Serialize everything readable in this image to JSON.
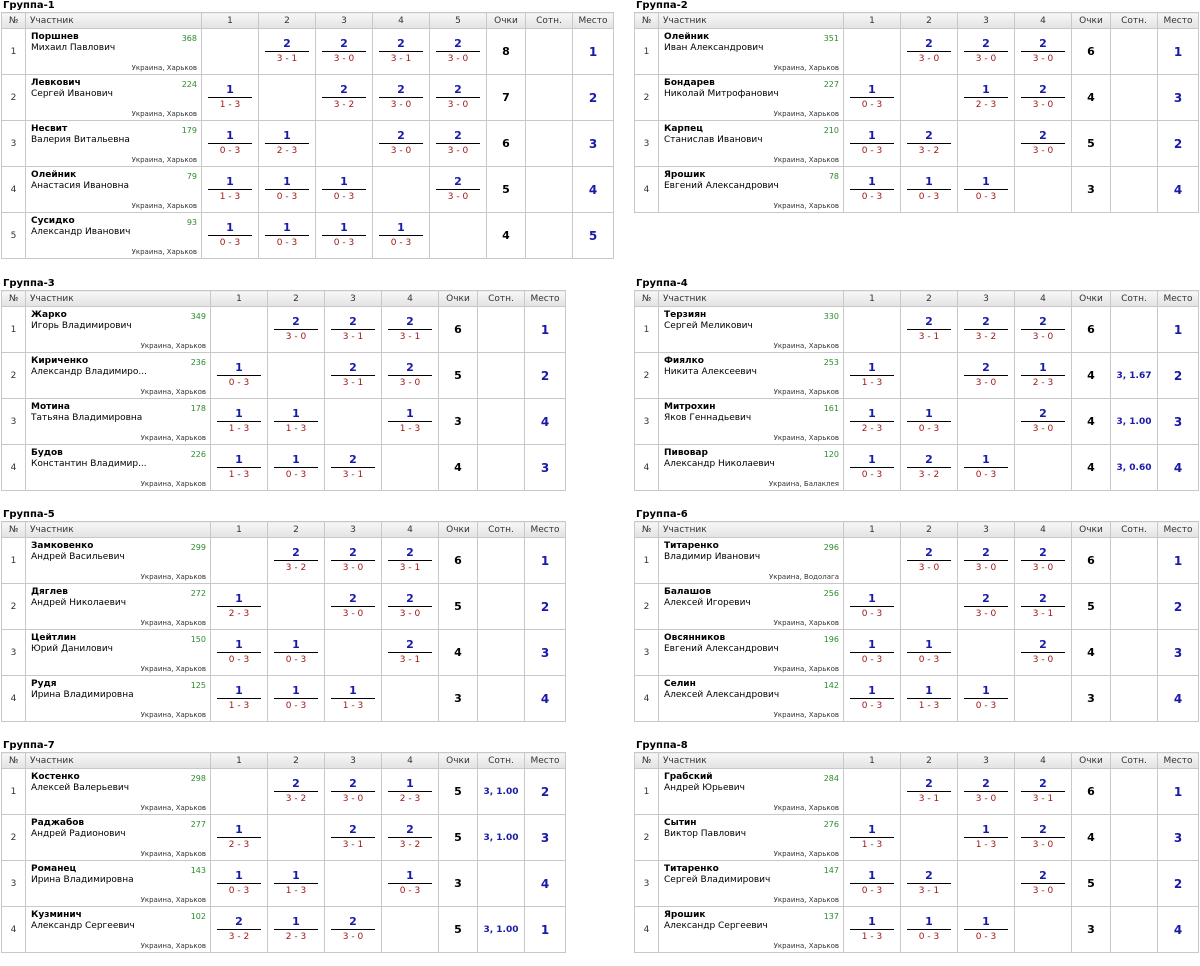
{
  "headers": {
    "num": "№",
    "participant": "Участник",
    "points": "Очки",
    "ratio": "Сотн.",
    "place": "Место"
  },
  "groups": [
    {
      "title": "Группа-1",
      "cols": [
        "1",
        "2",
        "3",
        "4",
        "5"
      ],
      "players": [
        {
          "n": "1",
          "last": "Поршнев",
          "first": "Михаил Павлович",
          "rating": "368",
          "city": "Украина, Харьков",
          "results": [
            null,
            [
              "2",
              "3 - 1"
            ],
            [
              "2",
              "3 - 0"
            ],
            [
              "2",
              "3 - 1"
            ],
            [
              "2",
              "3 - 0"
            ]
          ],
          "points": "8",
          "ratio": "",
          "place": "1"
        },
        {
          "n": "2",
          "last": "Левкович",
          "first": "Сергей Иванович",
          "rating": "224",
          "city": "Украина, Харьков",
          "results": [
            [
              "1",
              "1 - 3"
            ],
            null,
            [
              "2",
              "3 - 2"
            ],
            [
              "2",
              "3 - 0"
            ],
            [
              "2",
              "3 - 0"
            ]
          ],
          "points": "7",
          "ratio": "",
          "place": "2"
        },
        {
          "n": "3",
          "last": "Несвит",
          "first": "Валерия Витальевна",
          "rating": "179",
          "city": "Украина, Харьков",
          "results": [
            [
              "1",
              "0 - 3"
            ],
            [
              "1",
              "2 - 3"
            ],
            null,
            [
              "2",
              "3 - 0"
            ],
            [
              "2",
              "3 - 0"
            ]
          ],
          "points": "6",
          "ratio": "",
          "place": "3"
        },
        {
          "n": "4",
          "last": "Олейник",
          "first": "Анастасия Ивановна",
          "rating": "79",
          "city": "Украина, Харьков",
          "results": [
            [
              "1",
              "1 - 3"
            ],
            [
              "1",
              "0 - 3"
            ],
            [
              "1",
              "0 - 3"
            ],
            null,
            [
              "2",
              "3 - 0"
            ]
          ],
          "points": "5",
          "ratio": "",
          "place": "4"
        },
        {
          "n": "5",
          "last": "Сусидко",
          "first": "Александр Иванович",
          "rating": "93",
          "city": "Украина, Харьков",
          "results": [
            [
              "1",
              "0 - 3"
            ],
            [
              "1",
              "0 - 3"
            ],
            [
              "1",
              "0 - 3"
            ],
            [
              "1",
              "0 - 3"
            ],
            null
          ],
          "points": "4",
          "ratio": "",
          "place": "5"
        }
      ]
    },
    {
      "title": "Группа-2",
      "cols": [
        "1",
        "2",
        "3",
        "4"
      ],
      "players": [
        {
          "n": "1",
          "last": "Олейник",
          "first": "Иван Александрович",
          "rating": "351",
          "city": "Украина, Харьков",
          "results": [
            null,
            [
              "2",
              "3 - 0"
            ],
            [
              "2",
              "3 - 0"
            ],
            [
              "2",
              "3 - 0"
            ]
          ],
          "points": "6",
          "ratio": "",
          "place": "1"
        },
        {
          "n": "2",
          "last": "Бондарев",
          "first": "Николай Митрофанович",
          "rating": "227",
          "city": "Украина, Харьков",
          "results": [
            [
              "1",
              "0 - 3"
            ],
            null,
            [
              "1",
              "2 - 3"
            ],
            [
              "2",
              "3 - 0"
            ]
          ],
          "points": "4",
          "ratio": "",
          "place": "3"
        },
        {
          "n": "3",
          "last": "Карпец",
          "first": "Станислав Иванович",
          "rating": "210",
          "city": "Украина, Харьков",
          "results": [
            [
              "1",
              "0 - 3"
            ],
            [
              "2",
              "3 - 2"
            ],
            null,
            [
              "2",
              "3 - 0"
            ]
          ],
          "points": "5",
          "ratio": "",
          "place": "2"
        },
        {
          "n": "4",
          "last": "Ярошик",
          "first": "Евгений Александрович",
          "rating": "78",
          "city": "Украина, Харьков",
          "results": [
            [
              "1",
              "0 - 3"
            ],
            [
              "1",
              "0 - 3"
            ],
            [
              "1",
              "0 - 3"
            ],
            null
          ],
          "points": "3",
          "ratio": "",
          "place": "4"
        }
      ]
    },
    {
      "title": "Группа-3",
      "cols": [
        "1",
        "2",
        "3",
        "4"
      ],
      "players": [
        {
          "n": "1",
          "last": "Жарко",
          "first": "Игорь Владимирович",
          "rating": "349",
          "city": "Украина, Харьков",
          "results": [
            null,
            [
              "2",
              "3 - 0"
            ],
            [
              "2",
              "3 - 1"
            ],
            [
              "2",
              "3 - 1"
            ]
          ],
          "points": "6",
          "ratio": "",
          "place": "1"
        },
        {
          "n": "2",
          "last": "Кириченко",
          "first": "Александр Владимиро...",
          "rating": "236",
          "city": "Украина, Харьков",
          "results": [
            [
              "1",
              "0 - 3"
            ],
            null,
            [
              "2",
              "3 - 1"
            ],
            [
              "2",
              "3 - 0"
            ]
          ],
          "points": "5",
          "ratio": "",
          "place": "2"
        },
        {
          "n": "3",
          "last": "Мотина",
          "first": "Татьяна Владимировна",
          "rating": "178",
          "city": "Украина, Харьков",
          "results": [
            [
              "1",
              "1 - 3"
            ],
            [
              "1",
              "1 - 3"
            ],
            null,
            [
              "1",
              "1 - 3"
            ]
          ],
          "points": "3",
          "ratio": "",
          "place": "4"
        },
        {
          "n": "4",
          "last": "Будов",
          "first": "Константин Владимир...",
          "rating": "226",
          "city": "Украина, Харьков",
          "results": [
            [
              "1",
              "1 - 3"
            ],
            [
              "1",
              "0 - 3"
            ],
            [
              "2",
              "3 - 1"
            ],
            null
          ],
          "points": "4",
          "ratio": "",
          "place": "3"
        }
      ]
    },
    {
      "title": "Группа-4",
      "cols": [
        "1",
        "2",
        "3",
        "4"
      ],
      "players": [
        {
          "n": "1",
          "last": "Терзиян",
          "first": "Сергей Меликович",
          "rating": "330",
          "city": "Украина, Харьков",
          "results": [
            null,
            [
              "2",
              "3 - 1"
            ],
            [
              "2",
              "3 - 2"
            ],
            [
              "2",
              "3 - 0"
            ]
          ],
          "points": "6",
          "ratio": "",
          "place": "1"
        },
        {
          "n": "2",
          "last": "Фиялко",
          "first": "Никита Алексеевич",
          "rating": "253",
          "city": "Украина, Харьков",
          "results": [
            [
              "1",
              "1 - 3"
            ],
            null,
            [
              "2",
              "3 - 0"
            ],
            [
              "1",
              "2 - 3"
            ]
          ],
          "points": "4",
          "ratio": "3, 1.67",
          "place": "2"
        },
        {
          "n": "3",
          "last": "Митрохин",
          "first": "Яков Геннадьевич",
          "rating": "161",
          "city": "Украина, Харьков",
          "results": [
            [
              "1",
              "2 - 3"
            ],
            [
              "1",
              "0 - 3"
            ],
            null,
            [
              "2",
              "3 - 0"
            ]
          ],
          "points": "4",
          "ratio": "3, 1.00",
          "place": "3"
        },
        {
          "n": "4",
          "last": "Пивовар",
          "first": "Александр Николаевич",
          "rating": "120",
          "city": "Украина, Балаклея",
          "results": [
            [
              "1",
              "0 - 3"
            ],
            [
              "2",
              "3 - 2"
            ],
            [
              "1",
              "0 - 3"
            ],
            null
          ],
          "points": "4",
          "ratio": "3, 0.60",
          "place": "4"
        }
      ]
    },
    {
      "title": "Группа-5",
      "cols": [
        "1",
        "2",
        "3",
        "4"
      ],
      "players": [
        {
          "n": "1",
          "last": "Замковенко",
          "first": "Андрей Васильевич",
          "rating": "299",
          "city": "Украина, Харьков",
          "results": [
            null,
            [
              "2",
              "3 - 2"
            ],
            [
              "2",
              "3 - 0"
            ],
            [
              "2",
              "3 - 1"
            ]
          ],
          "points": "6",
          "ratio": "",
          "place": "1"
        },
        {
          "n": "2",
          "last": "Дяглев",
          "first": "Андрей Николаевич",
          "rating": "272",
          "city": "Украина, Харьков",
          "results": [
            [
              "1",
              "2 - 3"
            ],
            null,
            [
              "2",
              "3 - 0"
            ],
            [
              "2",
              "3 - 0"
            ]
          ],
          "points": "5",
          "ratio": "",
          "place": "2"
        },
        {
          "n": "3",
          "last": "Цейтлин",
          "first": "Юрий Данилович",
          "rating": "150",
          "city": "Украина, Харьков",
          "results": [
            [
              "1",
              "0 - 3"
            ],
            [
              "1",
              "0 - 3"
            ],
            null,
            [
              "2",
              "3 - 1"
            ]
          ],
          "points": "4",
          "ratio": "",
          "place": "3"
        },
        {
          "n": "4",
          "last": "Рудя",
          "first": "Ирина Владимировна",
          "rating": "125",
          "city": "Украина, Харьков",
          "results": [
            [
              "1",
              "1 - 3"
            ],
            [
              "1",
              "0 - 3"
            ],
            [
              "1",
              "1 - 3"
            ],
            null
          ],
          "points": "3",
          "ratio": "",
          "place": "4"
        }
      ]
    },
    {
      "title": "Группа-6",
      "cols": [
        "1",
        "2",
        "3",
        "4"
      ],
      "players": [
        {
          "n": "1",
          "last": "Титаренко",
          "first": "Владимир Иванович",
          "rating": "296",
          "city": "Украина, Водолага",
          "results": [
            null,
            [
              "2",
              "3 - 0"
            ],
            [
              "2",
              "3 - 0"
            ],
            [
              "2",
              "3 - 0"
            ]
          ],
          "points": "6",
          "ratio": "",
          "place": "1"
        },
        {
          "n": "2",
          "last": "Балашов",
          "first": "Алексей Игоревич",
          "rating": "256",
          "city": "Украина, Харьков",
          "results": [
            [
              "1",
              "0 - 3"
            ],
            null,
            [
              "2",
              "3 - 0"
            ],
            [
              "2",
              "3 - 1"
            ]
          ],
          "points": "5",
          "ratio": "",
          "place": "2"
        },
        {
          "n": "3",
          "last": "Овсянников",
          "first": "Евгений Александрович",
          "rating": "196",
          "city": "Украина, Харьков",
          "results": [
            [
              "1",
              "0 - 3"
            ],
            [
              "1",
              "0 - 3"
            ],
            null,
            [
              "2",
              "3 - 0"
            ]
          ],
          "points": "4",
          "ratio": "",
          "place": "3"
        },
        {
          "n": "4",
          "last": "Селин",
          "first": "Алексей Александрович",
          "rating": "142",
          "city": "Украина, Харьков",
          "results": [
            [
              "1",
              "0 - 3"
            ],
            [
              "1",
              "1 - 3"
            ],
            [
              "1",
              "0 - 3"
            ],
            null
          ],
          "points": "3",
          "ratio": "",
          "place": "4"
        }
      ]
    },
    {
      "title": "Группа-7",
      "cols": [
        "1",
        "2",
        "3",
        "4"
      ],
      "players": [
        {
          "n": "1",
          "last": "Костенко",
          "first": "Алексей Валерьевич",
          "rating": "298",
          "city": "Украина, Харьков",
          "results": [
            null,
            [
              "2",
              "3 - 2"
            ],
            [
              "2",
              "3 - 0"
            ],
            [
              "1",
              "2 - 3"
            ]
          ],
          "points": "5",
          "ratio": "3, 1.00",
          "place": "2"
        },
        {
          "n": "2",
          "last": "Раджабов",
          "first": "Андрей Радионович",
          "rating": "277",
          "city": "Украина, Харьков",
          "results": [
            [
              "1",
              "2 - 3"
            ],
            null,
            [
              "2",
              "3 - 1"
            ],
            [
              "2",
              "3 - 2"
            ]
          ],
          "points": "5",
          "ratio": "3, 1.00",
          "place": "3"
        },
        {
          "n": "3",
          "last": "Романец",
          "first": "Ирина Владимировна",
          "rating": "143",
          "city": "Украина, Харьков",
          "results": [
            [
              "1",
              "0 - 3"
            ],
            [
              "1",
              "1 - 3"
            ],
            null,
            [
              "1",
              "0 - 3"
            ]
          ],
          "points": "3",
          "ratio": "",
          "place": "4"
        },
        {
          "n": "4",
          "last": "Кузминич",
          "first": "Александр Сергеевич",
          "rating": "102",
          "city": "Украина, Харьков",
          "results": [
            [
              "2",
              "3 - 2"
            ],
            [
              "1",
              "2 - 3"
            ],
            [
              "2",
              "3 - 0"
            ],
            null
          ],
          "points": "5",
          "ratio": "3, 1.00",
          "place": "1"
        }
      ]
    },
    {
      "title": "Группа-8",
      "cols": [
        "1",
        "2",
        "3",
        "4"
      ],
      "players": [
        {
          "n": "1",
          "last": "Грабский",
          "first": "Андрей Юрьевич",
          "rating": "284",
          "city": "Украина, Харьков",
          "results": [
            null,
            [
              "2",
              "3 - 1"
            ],
            [
              "2",
              "3 - 0"
            ],
            [
              "2",
              "3 - 1"
            ]
          ],
          "points": "6",
          "ratio": "",
          "place": "1"
        },
        {
          "n": "2",
          "last": "Сытин",
          "first": "Виктор Павлович",
          "rating": "276",
          "city": "Украина, Харьков",
          "results": [
            [
              "1",
              "1 - 3"
            ],
            null,
            [
              "1",
              "1 - 3"
            ],
            [
              "2",
              "3 - 0"
            ]
          ],
          "points": "4",
          "ratio": "",
          "place": "3"
        },
        {
          "n": "3",
          "last": "Титаренко",
          "first": "Сергей Владимирович",
          "rating": "147",
          "city": "Украина, Харьков",
          "results": [
            [
              "1",
              "0 - 3"
            ],
            [
              "2",
              "3 - 1"
            ],
            null,
            [
              "2",
              "3 - 0"
            ]
          ],
          "points": "5",
          "ratio": "",
          "place": "2"
        },
        {
          "n": "4",
          "last": "Ярошик",
          "first": "Александр Сергеевич",
          "rating": "137",
          "city": "Украина, Харьков",
          "results": [
            [
              "1",
              "1 - 3"
            ],
            [
              "1",
              "0 - 3"
            ],
            [
              "1",
              "0 - 3"
            ],
            null
          ],
          "points": "3",
          "ratio": "",
          "place": "4"
        }
      ]
    }
  ]
}
